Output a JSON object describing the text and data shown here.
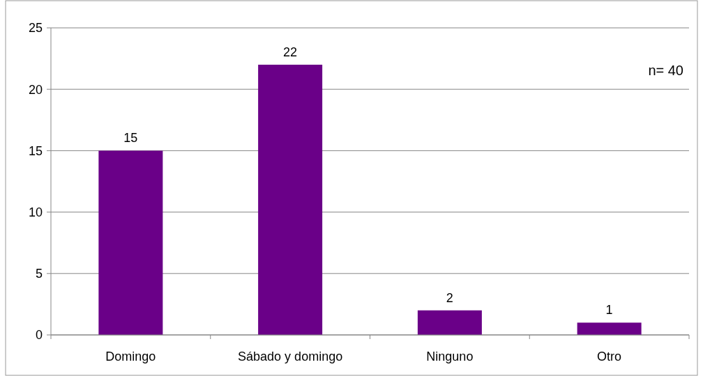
{
  "chart_data": {
    "type": "bar",
    "categories": [
      "Domingo",
      "Sábado y domingo",
      "Ninguno",
      "Otro"
    ],
    "values": [
      15,
      22,
      2,
      1
    ],
    "color": "#6a0088",
    "ylim": [
      0,
      25
    ],
    "yticks": [
      0,
      5,
      10,
      15,
      20,
      25
    ],
    "grid": "y",
    "data_labels": true,
    "annotations": [
      "n= 40"
    ]
  }
}
